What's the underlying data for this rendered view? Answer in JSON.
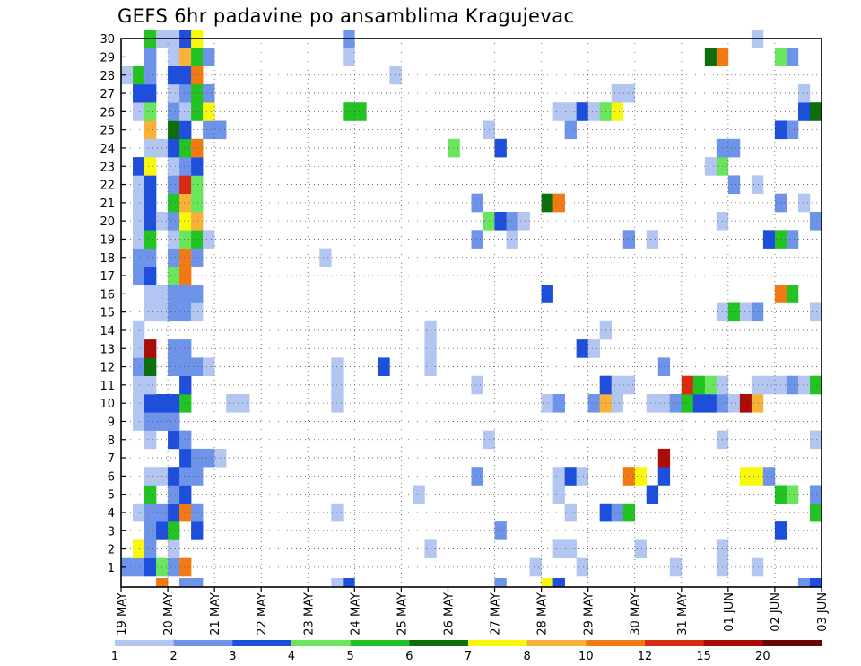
{
  "chart_data": {
    "type": "heatmap",
    "title": "GEFS 6hr padavine po ansamblima Kragujevac",
    "xlabel": "",
    "ylabel": "",
    "x_ticks": [
      "19 MAY",
      "20 MAY",
      "21 MAY",
      "22 MAY",
      "23 MAY",
      "24 MAY",
      "25 MAY",
      "26 MAY",
      "27 MAY",
      "28 MAY",
      "29 MAY",
      "30 MAY",
      "31 MAY",
      "01 JUN",
      "02 JUN",
      "03 JUN"
    ],
    "y_ticks": [
      "1",
      "2",
      "3",
      "4",
      "5",
      "6",
      "7",
      "8",
      "9",
      "10",
      "11",
      "12",
      "13",
      "14",
      "15",
      "16",
      "17",
      "18",
      "19",
      "20",
      "21",
      "22",
      "23",
      "24",
      "25",
      "26",
      "27",
      "28",
      "29",
      "30"
    ],
    "time_steps": 60,
    "members": 30,
    "grid": "dotted",
    "legend": {
      "placement": "bottom",
      "levels": [
        "1",
        "2",
        "3",
        "4",
        "5",
        "6",
        "7",
        "8",
        "10",
        "12",
        "15",
        "20"
      ],
      "colors": [
        "#b3c6f2",
        "#6e94ea",
        "#1d4fdc",
        "#6be55e",
        "#22c322",
        "#0c6f0c",
        "#f8f80a",
        "#f8b23a",
        "#f27a14",
        "#db2a12",
        "#aa0c08",
        "#6a0404"
      ]
    },
    "cells": [
      [
        1,
        1,
        2
      ],
      [
        1,
        2,
        2
      ],
      [
        1,
        3,
        3
      ],
      [
        1,
        4,
        4
      ],
      [
        1,
        5,
        2
      ],
      [
        1,
        6,
        10
      ],
      [
        1,
        36,
        1
      ],
      [
        1,
        40,
        1
      ],
      [
        1,
        48,
        1
      ],
      [
        1,
        52,
        1
      ],
      [
        1,
        55,
        1
      ],
      [
        2,
        2,
        7
      ],
      [
        2,
        3,
        2
      ],
      [
        2,
        5,
        1
      ],
      [
        2,
        27,
        1
      ],
      [
        2,
        38,
        1
      ],
      [
        2,
        39,
        1
      ],
      [
        2,
        45,
        1
      ],
      [
        2,
        52,
        1
      ],
      [
        3,
        3,
        2
      ],
      [
        3,
        4,
        3
      ],
      [
        3,
        5,
        5
      ],
      [
        3,
        7,
        3
      ],
      [
        3,
        33,
        2
      ],
      [
        3,
        57,
        3
      ],
      [
        4,
        2,
        1
      ],
      [
        4,
        3,
        2
      ],
      [
        4,
        4,
        2
      ],
      [
        4,
        5,
        3
      ],
      [
        4,
        6,
        10
      ],
      [
        4,
        7,
        2
      ],
      [
        4,
        19,
        1
      ],
      [
        4,
        39,
        1
      ],
      [
        4,
        42,
        3
      ],
      [
        4,
        43,
        2
      ],
      [
        4,
        44,
        5
      ],
      [
        4,
        60,
        5
      ],
      [
        5,
        3,
        5
      ],
      [
        5,
        5,
        2
      ],
      [
        5,
        6,
        3
      ],
      [
        5,
        26,
        1
      ],
      [
        5,
        38,
        1
      ],
      [
        5,
        46,
        3
      ],
      [
        5,
        57,
        5
      ],
      [
        5,
        58,
        4
      ],
      [
        5,
        60,
        2
      ],
      [
        6,
        3,
        1
      ],
      [
        6,
        4,
        1
      ],
      [
        6,
        5,
        3
      ],
      [
        6,
        6,
        2
      ],
      [
        6,
        7,
        2
      ],
      [
        6,
        31,
        2
      ],
      [
        6,
        38,
        1
      ],
      [
        6,
        39,
        3
      ],
      [
        6,
        40,
        1
      ],
      [
        6,
        44,
        10
      ],
      [
        6,
        45,
        7
      ],
      [
        6,
        47,
        3
      ],
      [
        6,
        54,
        7
      ],
      [
        6,
        55,
        7
      ],
      [
        6,
        56,
        2
      ],
      [
        7,
        6,
        3
      ],
      [
        7,
        7,
        2
      ],
      [
        7,
        8,
        2
      ],
      [
        7,
        9,
        1
      ],
      [
        7,
        47,
        15
      ],
      [
        8,
        3,
        1
      ],
      [
        8,
        5,
        3
      ],
      [
        8,
        6,
        2
      ],
      [
        8,
        32,
        1
      ],
      [
        8,
        52,
        1
      ],
      [
        8,
        60,
        1
      ],
      [
        9,
        2,
        1
      ],
      [
        9,
        3,
        2
      ],
      [
        9,
        4,
        2
      ],
      [
        9,
        5,
        2
      ],
      [
        10,
        2,
        1
      ],
      [
        10,
        3,
        3
      ],
      [
        10,
        4,
        3
      ],
      [
        10,
        5,
        3
      ],
      [
        10,
        6,
        5
      ],
      [
        10,
        10,
        1
      ],
      [
        10,
        11,
        1
      ],
      [
        10,
        19,
        1
      ],
      [
        10,
        37,
        1
      ],
      [
        10,
        38,
        2
      ],
      [
        10,
        41,
        2
      ],
      [
        10,
        42,
        8
      ],
      [
        10,
        43,
        1
      ],
      [
        10,
        46,
        1
      ],
      [
        10,
        47,
        1
      ],
      [
        10,
        48,
        2
      ],
      [
        10,
        49,
        5
      ],
      [
        10,
        50,
        3
      ],
      [
        10,
        51,
        3
      ],
      [
        10,
        52,
        2
      ],
      [
        10,
        53,
        1
      ],
      [
        10,
        54,
        15
      ],
      [
        10,
        55,
        8
      ],
      [
        11,
        2,
        1
      ],
      [
        11,
        3,
        1
      ],
      [
        11,
        6,
        3
      ],
      [
        11,
        19,
        1
      ],
      [
        11,
        31,
        1
      ],
      [
        11,
        42,
        3
      ],
      [
        11,
        43,
        1
      ],
      [
        11,
        44,
        1
      ],
      [
        11,
        49,
        12
      ],
      [
        11,
        50,
        5
      ],
      [
        11,
        51,
        4
      ],
      [
        11,
        52,
        1
      ],
      [
        11,
        55,
        1
      ],
      [
        11,
        56,
        1
      ],
      [
        11,
        57,
        1
      ],
      [
        11,
        58,
        2
      ],
      [
        11,
        59,
        1
      ],
      [
        11,
        60,
        5
      ],
      [
        12,
        2,
        2
      ],
      [
        12,
        3,
        6
      ],
      [
        12,
        5,
        2
      ],
      [
        12,
        6,
        2
      ],
      [
        12,
        7,
        2
      ],
      [
        12,
        8,
        1
      ],
      [
        12,
        19,
        1
      ],
      [
        12,
        23,
        3
      ],
      [
        12,
        27,
        1
      ],
      [
        12,
        47,
        2
      ],
      [
        13,
        2,
        1
      ],
      [
        13,
        3,
        15
      ],
      [
        13,
        5,
        2
      ],
      [
        13,
        6,
        2
      ],
      [
        13,
        27,
        1
      ],
      [
        13,
        40,
        3
      ],
      [
        13,
        41,
        1
      ],
      [
        14,
        2,
        1
      ],
      [
        14,
        27,
        1
      ],
      [
        14,
        42,
        1
      ],
      [
        15,
        3,
        1
      ],
      [
        15,
        4,
        1
      ],
      [
        15,
        5,
        2
      ],
      [
        15,
        6,
        2
      ],
      [
        15,
        7,
        1
      ],
      [
        15,
        52,
        1
      ],
      [
        15,
        53,
        5
      ],
      [
        15,
        54,
        1
      ],
      [
        15,
        55,
        2
      ],
      [
        15,
        60,
        1
      ],
      [
        16,
        3,
        1
      ],
      [
        16,
        4,
        1
      ],
      [
        16,
        5,
        2
      ],
      [
        16,
        6,
        2
      ],
      [
        16,
        7,
        2
      ],
      [
        16,
        37,
        3
      ],
      [
        16,
        57,
        10
      ],
      [
        16,
        58,
        5
      ],
      [
        17,
        2,
        2
      ],
      [
        17,
        3,
        3
      ],
      [
        17,
        5,
        4
      ],
      [
        17,
        6,
        10
      ],
      [
        18,
        2,
        2
      ],
      [
        18,
        3,
        2
      ],
      [
        18,
        5,
        2
      ],
      [
        18,
        6,
        10
      ],
      [
        18,
        7,
        2
      ],
      [
        18,
        18,
        1
      ],
      [
        19,
        2,
        1
      ],
      [
        19,
        3,
        5
      ],
      [
        19,
        5,
        1
      ],
      [
        19,
        6,
        4
      ],
      [
        19,
        7,
        5
      ],
      [
        19,
        8,
        1
      ],
      [
        19,
        31,
        2
      ],
      [
        19,
        34,
        1
      ],
      [
        19,
        44,
        2
      ],
      [
        19,
        46,
        1
      ],
      [
        19,
        56,
        3
      ],
      [
        19,
        57,
        5
      ],
      [
        19,
        58,
        2
      ],
      [
        20,
        2,
        1
      ],
      [
        20,
        3,
        3
      ],
      [
        20,
        4,
        1
      ],
      [
        20,
        5,
        2
      ],
      [
        20,
        6,
        7
      ],
      [
        20,
        7,
        8
      ],
      [
        20,
        32,
        4
      ],
      [
        20,
        33,
        3
      ],
      [
        20,
        34,
        2
      ],
      [
        20,
        35,
        1
      ],
      [
        20,
        52,
        1
      ],
      [
        20,
        60,
        2
      ],
      [
        21,
        2,
        1
      ],
      [
        21,
        3,
        3
      ],
      [
        21,
        5,
        5
      ],
      [
        21,
        6,
        8
      ],
      [
        21,
        7,
        4
      ],
      [
        21,
        31,
        2
      ],
      [
        21,
        37,
        6
      ],
      [
        21,
        38,
        10
      ],
      [
        21,
        57,
        2
      ],
      [
        21,
        59,
        1
      ],
      [
        22,
        2,
        1
      ],
      [
        22,
        3,
        3
      ],
      [
        22,
        5,
        2
      ],
      [
        22,
        6,
        12
      ],
      [
        22,
        7,
        4
      ],
      [
        22,
        53,
        2
      ],
      [
        22,
        55,
        1
      ],
      [
        23,
        2,
        3
      ],
      [
        23,
        3,
        7
      ],
      [
        23,
        5,
        1
      ],
      [
        23,
        6,
        2
      ],
      [
        23,
        7,
        3
      ],
      [
        23,
        51,
        1
      ],
      [
        23,
        52,
        4
      ],
      [
        24,
        3,
        1
      ],
      [
        24,
        4,
        1
      ],
      [
        24,
        5,
        3
      ],
      [
        24,
        6,
        5
      ],
      [
        24,
        7,
        10
      ],
      [
        24,
        29,
        4
      ],
      [
        24,
        33,
        3
      ],
      [
        24,
        52,
        2
      ],
      [
        24,
        53,
        2
      ],
      [
        25,
        3,
        8
      ],
      [
        25,
        5,
        6
      ],
      [
        25,
        6,
        3
      ],
      [
        25,
        8,
        2
      ],
      [
        25,
        9,
        2
      ],
      [
        25,
        32,
        1
      ],
      [
        25,
        39,
        2
      ],
      [
        25,
        57,
        3
      ],
      [
        25,
        58,
        2
      ],
      [
        26,
        2,
        1
      ],
      [
        26,
        3,
        4
      ],
      [
        26,
        5,
        2
      ],
      [
        26,
        6,
        1
      ],
      [
        26,
        7,
        5
      ],
      [
        26,
        8,
        7
      ],
      [
        26,
        20,
        5
      ],
      [
        26,
        21,
        5
      ],
      [
        26,
        38,
        1
      ],
      [
        26,
        39,
        1
      ],
      [
        26,
        40,
        3
      ],
      [
        26,
        41,
        1
      ],
      [
        26,
        42,
        4
      ],
      [
        26,
        43,
        7
      ],
      [
        26,
        59,
        3
      ],
      [
        26,
        60,
        6
      ],
      [
        27,
        2,
        3
      ],
      [
        27,
        3,
        3
      ],
      [
        27,
        5,
        1
      ],
      [
        27,
        6,
        2
      ],
      [
        27,
        7,
        5
      ],
      [
        27,
        8,
        2
      ],
      [
        27,
        43,
        1
      ],
      [
        27,
        44,
        1
      ],
      [
        27,
        59,
        1
      ],
      [
        28,
        1,
        1
      ],
      [
        28,
        2,
        5
      ],
      [
        28,
        3,
        2
      ],
      [
        28,
        5,
        3
      ],
      [
        28,
        6,
        3
      ],
      [
        28,
        7,
        10
      ],
      [
        28,
        24,
        1
      ],
      [
        29,
        3,
        2
      ],
      [
        29,
        5,
        1
      ],
      [
        29,
        6,
        8
      ],
      [
        29,
        7,
        5
      ],
      [
        29,
        8,
        2
      ],
      [
        29,
        20,
        1
      ],
      [
        29,
        51,
        6
      ],
      [
        29,
        52,
        10
      ],
      [
        29,
        57,
        4
      ],
      [
        29,
        58,
        2
      ],
      [
        30,
        3,
        5
      ],
      [
        30,
        4,
        1
      ],
      [
        30,
        5,
        1
      ],
      [
        30,
        6,
        3
      ],
      [
        30,
        7,
        7
      ],
      [
        30,
        20,
        2
      ],
      [
        30,
        55,
        1
      ]
    ],
    "bottom_row": [
      [
        4,
        10
      ],
      [
        6,
        2
      ],
      [
        7,
        2
      ],
      [
        19,
        1
      ],
      [
        20,
        3
      ],
      [
        33,
        2
      ],
      [
        37,
        7
      ],
      [
        38,
        3
      ],
      [
        59,
        2
      ],
      [
        60,
        3
      ]
    ]
  }
}
